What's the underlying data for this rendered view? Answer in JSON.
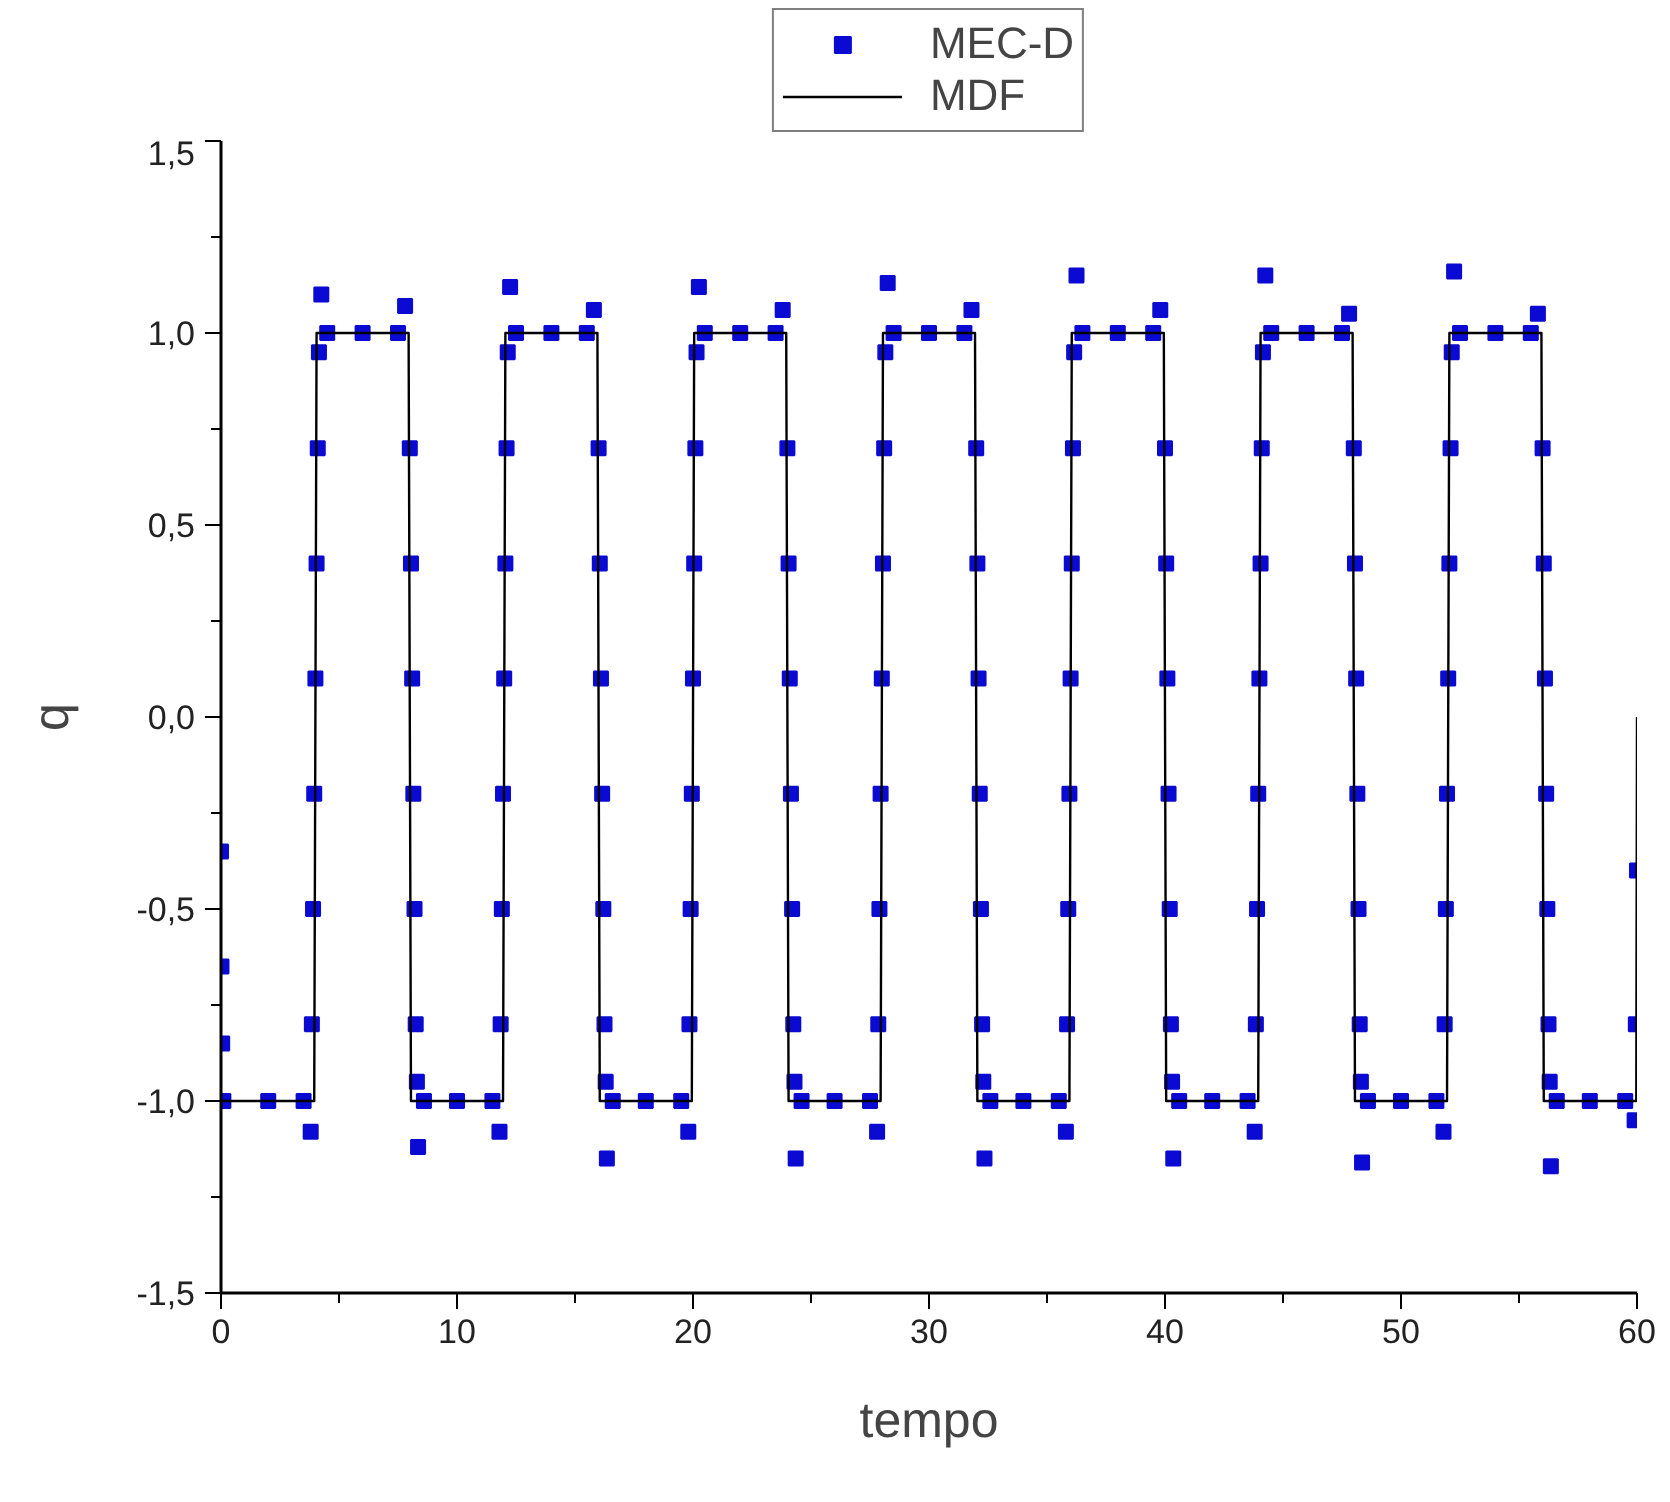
{
  "chart_data": {
    "type": "line",
    "xlabel": "tempo",
    "ylabel": "q",
    "xlim": [
      0,
      60
    ],
    "ylim": [
      -1.5,
      1.5
    ],
    "xticks": [
      0,
      10,
      20,
      30,
      40,
      50,
      60
    ],
    "yticks": [
      {
        "value": -1.5,
        "label": "-1,5"
      },
      {
        "value": -1.0,
        "label": "-1,0"
      },
      {
        "value": -0.5,
        "label": "-0,5"
      },
      {
        "value": 0.0,
        "label": "0,0"
      },
      {
        "value": 0.5,
        "label": "0,5"
      },
      {
        "value": 1.0,
        "label": "1,0"
      },
      {
        "value": 1.5,
        "label": "1,5"
      }
    ],
    "grid": false,
    "legend": "top",
    "series": [
      {
        "name": "MEC-D",
        "type": "scatter",
        "marker": "square",
        "color": "#0a0ad2",
        "x": [
          0,
          0.02,
          0.05,
          0.1,
          2,
          3.5,
          3.8,
          3.85,
          3.9,
          3.95,
          4,
          4.05,
          4.1,
          4.15,
          4.25,
          4.5,
          6,
          7.5,
          7.8,
          8,
          8.05,
          8.1,
          8.15,
          8.2,
          8.25,
          8.3,
          8.35,
          8.6,
          10,
          11.5,
          11.8,
          11.85,
          11.9,
          11.95,
          12,
          12.05,
          12.1,
          12.15,
          12.25,
          12.5,
          14,
          15.5,
          15.8,
          16,
          16.05,
          16.1,
          16.15,
          16.2,
          16.25,
          16.3,
          16.35,
          16.6,
          18,
          19.5,
          19.8,
          19.85,
          19.9,
          19.95,
          20,
          20.05,
          20.1,
          20.15,
          20.25,
          20.5,
          22,
          23.5,
          23.8,
          24,
          24.05,
          24.1,
          24.15,
          24.2,
          24.25,
          24.3,
          24.35,
          24.6,
          26,
          27.5,
          27.8,
          27.85,
          27.9,
          27.95,
          28,
          28.05,
          28.1,
          28.15,
          28.25,
          28.5,
          30,
          31.5,
          31.8,
          32,
          32.05,
          32.1,
          32.15,
          32.2,
          32.25,
          32.3,
          32.35,
          32.6,
          34,
          35.5,
          35.8,
          35.85,
          35.9,
          35.95,
          36,
          36.05,
          36.1,
          36.15,
          36.25,
          36.5,
          38,
          39.5,
          39.8,
          40,
          40.05,
          40.1,
          40.15,
          40.2,
          40.25,
          40.3,
          40.35,
          40.6,
          42,
          43.5,
          43.8,
          43.85,
          43.9,
          43.95,
          44,
          44.05,
          44.1,
          44.15,
          44.25,
          44.5,
          46,
          47.5,
          47.8,
          48,
          48.05,
          48.1,
          48.15,
          48.2,
          48.25,
          48.3,
          48.35,
          48.6,
          50,
          51.5,
          51.8,
          51.85,
          51.9,
          51.95,
          52,
          52.05,
          52.1,
          52.15,
          52.25,
          52.5,
          54,
          55.5,
          55.8,
          56,
          56.05,
          56.1,
          56.15,
          56.2,
          56.25,
          56.3,
          56.35,
          56.6,
          58,
          59.5,
          59.9,
          59.95,
          60
        ],
        "values": [
          -0.35,
          -0.65,
          -0.85,
          -1.0,
          -1.0,
          -1.0,
          -1.08,
          -0.8,
          -0.5,
          -0.2,
          0.1,
          0.4,
          0.7,
          0.95,
          1.1,
          1.0,
          1.0,
          1.0,
          1.07,
          0.7,
          0.4,
          0.1,
          -0.2,
          -0.5,
          -0.8,
          -0.95,
          -1.12,
          -1.0,
          -1.0,
          -1.0,
          -1.08,
          -0.8,
          -0.5,
          -0.2,
          0.1,
          0.4,
          0.7,
          0.95,
          1.12,
          1.0,
          1.0,
          1.0,
          1.06,
          0.7,
          0.4,
          0.1,
          -0.2,
          -0.5,
          -0.8,
          -0.95,
          -1.15,
          -1.0,
          -1.0,
          -1.0,
          -1.08,
          -0.8,
          -0.5,
          -0.2,
          0.1,
          0.4,
          0.7,
          0.95,
          1.12,
          1.0,
          1.0,
          1.0,
          1.06,
          0.7,
          0.4,
          0.1,
          -0.2,
          -0.5,
          -0.8,
          -0.95,
          -1.15,
          -1.0,
          -1.0,
          -1.0,
          -1.08,
          -0.8,
          -0.5,
          -0.2,
          0.1,
          0.4,
          0.7,
          0.95,
          1.13,
          1.0,
          1.0,
          1.0,
          1.06,
          0.7,
          0.4,
          0.1,
          -0.2,
          -0.5,
          -0.8,
          -0.95,
          -1.15,
          -1.0,
          -1.0,
          -1.0,
          -1.08,
          -0.8,
          -0.5,
          -0.2,
          0.1,
          0.4,
          0.7,
          0.95,
          1.15,
          1.0,
          1.0,
          1.0,
          1.06,
          0.7,
          0.4,
          0.1,
          -0.2,
          -0.5,
          -0.8,
          -0.95,
          -1.15,
          -1.0,
          -1.0,
          -1.0,
          -1.08,
          -0.8,
          -0.5,
          -0.2,
          0.1,
          0.4,
          0.7,
          0.95,
          1.15,
          1.0,
          1.0,
          1.0,
          1.05,
          0.7,
          0.4,
          0.1,
          -0.2,
          -0.5,
          -0.8,
          -0.95,
          -1.16,
          -1.0,
          -1.0,
          -1.0,
          -1.08,
          -0.8,
          -0.5,
          -0.2,
          0.1,
          0.4,
          0.7,
          0.95,
          1.16,
          1.0,
          1.0,
          1.0,
          1.05,
          0.7,
          0.4,
          0.1,
          -0.2,
          -0.5,
          -0.8,
          -0.95,
          -1.17,
          -1.0,
          -1.0,
          -1.0,
          -1.05,
          -0.8,
          -0.4
        ]
      },
      {
        "name": "MDF",
        "line_style": "solid",
        "color": "#000000",
        "x": [
          0,
          3.95,
          4.05,
          7.95,
          8.05,
          11.95,
          12.05,
          15.95,
          16.05,
          19.95,
          20.05,
          23.95,
          24.05,
          27.95,
          28.05,
          31.95,
          32.05,
          35.95,
          36.05,
          39.95,
          40.05,
          43.95,
          44.05,
          47.95,
          48.05,
          51.95,
          52.05,
          55.95,
          56.05,
          59.97,
          60
        ],
        "values": [
          -1.0,
          -1.0,
          1.0,
          1.0,
          -1.0,
          -1.0,
          1.0,
          1.0,
          -1.0,
          -1.0,
          1.0,
          1.0,
          -1.0,
          -1.0,
          1.0,
          1.0,
          -1.0,
          -1.0,
          1.0,
          1.0,
          -1.0,
          -1.0,
          1.0,
          1.0,
          -1.0,
          -1.0,
          1.0,
          1.0,
          -1.0,
          -1.0,
          0.0
        ]
      }
    ]
  }
}
